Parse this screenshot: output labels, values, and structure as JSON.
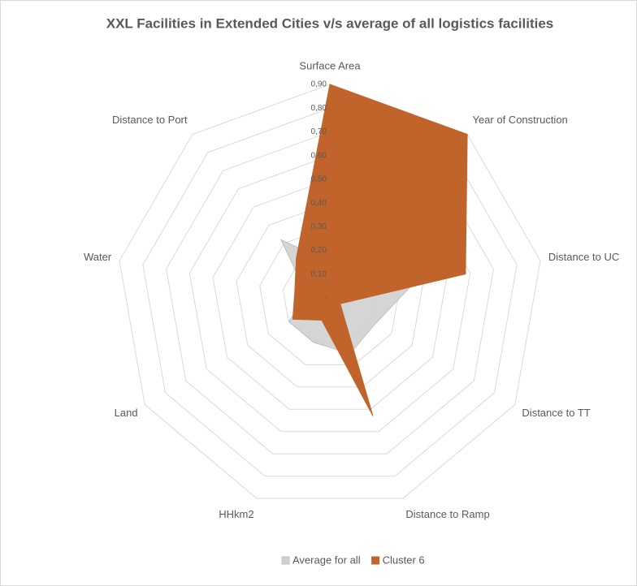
{
  "chart_data": {
    "type": "radar",
    "title": "XXL Facilities in Extended Cities v/s average of all logistics facilities",
    "categories": [
      "Surface Area",
      "Year of Construction",
      "Distance to UC",
      "Distance to TT",
      "Distance to Ramp",
      "HHkm2",
      "Land",
      "Water",
      "Distance to Port"
    ],
    "series": [
      {
        "name": "Average for all",
        "color": "#d0d0d0",
        "values": [
          0.15,
          0.2,
          0.36,
          0.22,
          0.25,
          0.2,
          0.2,
          0.1,
          0.32
        ]
      },
      {
        "name": "Cluster 6",
        "color": "#c0642b",
        "values": [
          0.9,
          0.9,
          0.58,
          0.05,
          0.53,
          0.1,
          0.18,
          0.15,
          0.22
        ]
      }
    ],
    "ylim": [
      0,
      0.9
    ],
    "yticks": [
      {
        "value": 0,
        "label": "-"
      },
      {
        "value": 0.1,
        "label": "0,10"
      },
      {
        "value": 0.2,
        "label": "0,20"
      },
      {
        "value": 0.3,
        "label": "0,30"
      },
      {
        "value": 0.4,
        "label": "0,40"
      },
      {
        "value": 0.5,
        "label": "0,50"
      },
      {
        "value": 0.6,
        "label": "0,60"
      },
      {
        "value": 0.7,
        "label": "0,70"
      },
      {
        "value": 0.8,
        "label": "0,80"
      },
      {
        "value": 0.9,
        "label": "0,90"
      }
    ],
    "grid": true,
    "legend": "bottom"
  }
}
